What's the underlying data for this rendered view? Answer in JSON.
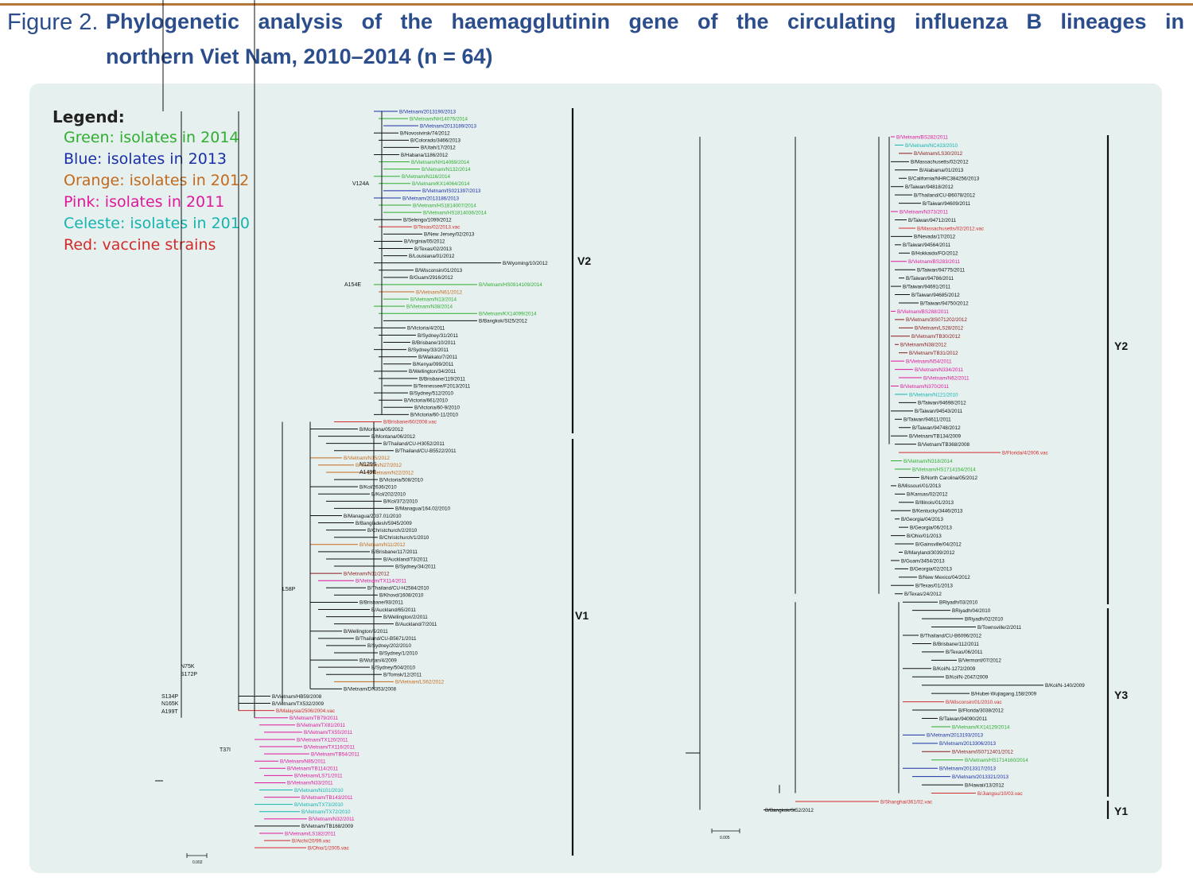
{
  "figure": {
    "number": "Figure 2.",
    "title_line1": "Phylogenetic analysis of the haemagglutinin gene of the circulating influenza B lineages in",
    "title_line2": "northern Viet Nam, 2010–2014 (n = 64)"
  },
  "legend": {
    "title": "Legend:",
    "items": [
      {
        "label": "Green: isolates in 2014",
        "color": "#2fad2f"
      },
      {
        "label": "Blue: isolates in 2013",
        "color": "#1b2fa8"
      },
      {
        "label": "Orange: isolates in 2012",
        "color": "#c3691c"
      },
      {
        "label": "Pink:  isolates in 2011",
        "color": "#e0189c"
      },
      {
        "label": "Celeste: isolates in 2010",
        "color": "#14b4b0"
      },
      {
        "label": "Red: vaccine strains",
        "color": "#d42a2a"
      }
    ]
  },
  "colors": {
    "black": "#111111",
    "green": "#2fad2f",
    "blue": "#1b2fa8",
    "orange": "#c3691c",
    "pink": "#e0189c",
    "celeste": "#14b4b0",
    "red": "#d42a2a",
    "darkred": "#8a1a1a",
    "panel": "#e5f0ef",
    "caption": "#2b4d8c"
  },
  "clades": [
    {
      "label": "V2"
    },
    {
      "label": "V1"
    },
    {
      "label": "Y2"
    },
    {
      "label": "Y3"
    },
    {
      "label": "Y1"
    }
  ],
  "scale_bars": [
    "0.002",
    "0.005"
  ],
  "mutations": [
    "V124A",
    "A154E",
    "N129S",
    "A149E",
    "L58P",
    "N75K",
    "S172P",
    "S134P",
    "N165K",
    "A199T",
    "T37I"
  ],
  "left_tree": [
    {
      "t": "B/Vietnam/2013190/2013",
      "c": "blue"
    },
    {
      "t": "B/Vietnam/NH14076/2014",
      "c": "green"
    },
    {
      "t": "B/Vietnam/2013189/2013",
      "c": "blue"
    },
    {
      "t": "B/Novosivirsk/74/2012",
      "c": "black"
    },
    {
      "t": "B/Colorado/3466/2013",
      "c": "black"
    },
    {
      "t": "B/Utah/17/2012",
      "c": "black"
    },
    {
      "t": "B/Habana/1186/2012",
      "c": "black"
    },
    {
      "t": "B/Vietnam/NH14069/2014",
      "c": "green"
    },
    {
      "t": "B/Vietnam/N132/2014",
      "c": "green"
    },
    {
      "t": "B/Vietnam/N116/2014",
      "c": "green"
    },
    {
      "t": "B/Vietnam/KX14064/2014",
      "c": "green"
    },
    {
      "t": "B/Vietnam/IS021397/2013",
      "c": "blue"
    },
    {
      "t": "B/Vietnam/2013186/2013",
      "c": "blue"
    },
    {
      "t": "B/Vietnam/HS1814007/2014",
      "c": "green"
    },
    {
      "t": "B/Vietnam/HS1814036/2014",
      "c": "green"
    },
    {
      "t": "B/Selengo/1099/2012",
      "c": "black"
    },
    {
      "t": "B/Texas/02/2013.vac",
      "c": "red"
    },
    {
      "t": "B/New Jersey/02/2013",
      "c": "black"
    },
    {
      "t": "B/Virginia/05/2012",
      "c": "black"
    },
    {
      "t": "B/Texas/02/2013",
      "c": "black"
    },
    {
      "t": "B/Louisiana/01/2012",
      "c": "black"
    },
    {
      "t": "B/Wyoming/10/2012",
      "c": "black"
    },
    {
      "t": "B/Wisconsin/01/2013",
      "c": "black"
    },
    {
      "t": "B/Guam/2916/2012",
      "c": "black"
    },
    {
      "t": "B/Vietnam/HS0914109/2014",
      "c": "green"
    },
    {
      "t": "B/Vietnam/N61/2012",
      "c": "orange"
    },
    {
      "t": "B/Vietnam/N13/2014",
      "c": "green"
    },
    {
      "t": "B/Vietnam/N38/2014",
      "c": "green"
    },
    {
      "t": "B/Vietnam/KX14099/2014",
      "c": "green"
    },
    {
      "t": "B/Bangkok/SI25/2012",
      "c": "black"
    },
    {
      "t": "B/Victoria/4/2011",
      "c": "black"
    },
    {
      "t": "B/Sydney/31/2011",
      "c": "black"
    },
    {
      "t": "B/Brisbane/10/2011",
      "c": "black"
    },
    {
      "t": "B/Sydney/33/2011",
      "c": "black"
    },
    {
      "t": "B/Waikato/7/2011",
      "c": "black"
    },
    {
      "t": "B/Kenya/099/2011",
      "c": "black"
    },
    {
      "t": "B/Wellington/34/2011",
      "c": "black"
    },
    {
      "t": "B/Brisbane/119/2011",
      "c": "black"
    },
    {
      "t": "B/Tennessee/F2013/2011",
      "c": "black"
    },
    {
      "t": "B/Sydney/512/2010",
      "c": "black"
    },
    {
      "t": "B/Victoria/661/2010",
      "c": "black"
    },
    {
      "t": "B/Victoria/60-9/2010",
      "c": "black"
    },
    {
      "t": "B/Victoria/60-11/2010",
      "c": "black"
    },
    {
      "t": "B/Brisbane/60/2008.vac",
      "c": "red"
    },
    {
      "t": "B/Montana/05/2012",
      "c": "black"
    },
    {
      "t": "B/Montana/06/2012",
      "c": "black"
    },
    {
      "t": "B/Thailand/CU-H3052/2011",
      "c": "black"
    },
    {
      "t": "B/Thailand/CU-B5522/2011",
      "c": "black"
    },
    {
      "t": "B/Vietnam/N15/2012",
      "c": "orange"
    },
    {
      "t": "B/Vietnam/N27/2012",
      "c": "orange"
    },
    {
      "t": "B/Vietnam/N22/2012",
      "c": "orange"
    },
    {
      "t": "B/Victoria/508/2010",
      "c": "black"
    },
    {
      "t": "B/Kol/2636/2010",
      "c": "black"
    },
    {
      "t": "B/Kol/202/2010",
      "c": "black"
    },
    {
      "t": "B/Kol/372/2010",
      "c": "black"
    },
    {
      "t": "B/Managua/164.02/2010",
      "c": "black"
    },
    {
      "t": "B/Managua/2037.01/2010",
      "c": "black"
    },
    {
      "t": "B/Bangladesh/5945/2009",
      "c": "black"
    },
    {
      "t": "B/Christchurch/2/2010",
      "c": "black"
    },
    {
      "t": "B/Christchurch/1/2010",
      "c": "black"
    },
    {
      "t": "B/Vietnam/N11/2012",
      "c": "orange"
    },
    {
      "t": "B/Brisbane/117/2011",
      "c": "black"
    },
    {
      "t": "B/Auckland/73/2011",
      "c": "black"
    },
    {
      "t": "B/Sydney/34/2011",
      "c": "black"
    },
    {
      "t": "B/Vietnam/N11/2012",
      "c": "darkred"
    },
    {
      "t": "B/Vietnam/TX114/2011",
      "c": "pink"
    },
    {
      "t": "B/Thailand/CU-H2584/2010",
      "c": "black"
    },
    {
      "t": "B/Khovd/1608/2010",
      "c": "black"
    },
    {
      "t": "B/Brisbane/93/2011",
      "c": "black"
    },
    {
      "t": "B/Auckland/65/2011",
      "c": "black"
    },
    {
      "t": "B/Wellington/2/2011",
      "c": "black"
    },
    {
      "t": "B/Auckland/7/2011",
      "c": "black"
    },
    {
      "t": "B/Wellington/5/2011",
      "c": "black"
    },
    {
      "t": "B/Thailand/CU-B5671/2011",
      "c": "black"
    },
    {
      "t": "B/Sydney/202/2010",
      "c": "black"
    },
    {
      "t": "B/Sydney/1/2010",
      "c": "black"
    },
    {
      "t": "B/Wuhan/4/2009",
      "c": "black"
    },
    {
      "t": "B/Sydney/504/2010",
      "c": "black"
    },
    {
      "t": "B/Tomsk/12/2011",
      "c": "black"
    },
    {
      "t": "B/Vietnam/LS62/2012",
      "c": "orange"
    },
    {
      "t": "B/Vietnam/DN353/2008",
      "c": "black"
    },
    {
      "t": "B/Vietnam/HB59/2008",
      "c": "black"
    },
    {
      "t": "B/Vietnam/TX532/2009",
      "c": "black"
    },
    {
      "t": "B/Malaysia/2506/2004.vac",
      "c": "red"
    },
    {
      "t": "B/Vietnam/TB79/2011",
      "c": "pink"
    },
    {
      "t": "B/Vietnam/TX81/2011",
      "c": "pink"
    },
    {
      "t": "B/Vietnam/TX55/2011",
      "c": "pink"
    },
    {
      "t": "B/Vietnam/TX120/2011",
      "c": "pink"
    },
    {
      "t": "B/Vietnam/TX116/2011",
      "c": "pink"
    },
    {
      "t": "B/Vietnam/TB54/2011",
      "c": "pink"
    },
    {
      "t": "B/Vietnam/N85/2011",
      "c": "pink"
    },
    {
      "t": "B/Vietnam/TB114/2011",
      "c": "pink"
    },
    {
      "t": "B/Vietnam/LS71/2011",
      "c": "pink"
    },
    {
      "t": "B/Vietnam/N33/2011",
      "c": "pink"
    },
    {
      "t": "B/Vietnam/N101/2010",
      "c": "celeste"
    },
    {
      "t": "B/Vietnam/TB143/2011",
      "c": "pink"
    },
    {
      "t": "B/Vietnam/TX73/2010",
      "c": "celeste"
    },
    {
      "t": "B/Vietnam/TX72/2010",
      "c": "celeste"
    },
    {
      "t": "B/Vietnam/N32/2011",
      "c": "pink"
    },
    {
      "t": "B/Vietnam/TB168/2009",
      "c": "black"
    },
    {
      "t": "B/Vietnam/LS182/2011",
      "c": "pink"
    },
    {
      "t": "B/Aichi/20/99.vac",
      "c": "red"
    },
    {
      "t": "B/Ohio/1/2005.vac",
      "c": "red"
    }
  ],
  "right_tree": [
    {
      "t": "B/Vietnam/BS282/2011",
      "c": "pink"
    },
    {
      "t": "B/Vietnam/NC433/2010",
      "c": "celeste"
    },
    {
      "t": "B/Vietnam/LS30/2012",
      "c": "darkred"
    },
    {
      "t": "B/Massachusetts/02/2012",
      "c": "black"
    },
    {
      "t": "B/Alabama/01/2013",
      "c": "black"
    },
    {
      "t": "B/California/NHRC384256/2013",
      "c": "black"
    },
    {
      "t": "B/Taiwan/94818/2012",
      "c": "black"
    },
    {
      "t": "B/Thailand/CU-B6078/2012",
      "c": "black"
    },
    {
      "t": "B/Taiwan/94609/2011",
      "c": "black"
    },
    {
      "t": "B/Vietnam/N373/2011",
      "c": "pink"
    },
    {
      "t": "B/Taiwan/94712/2011",
      "c": "black"
    },
    {
      "t": "B/Massachusetts/02/2012.vac",
      "c": "red"
    },
    {
      "t": "B/Nevada/17/2012",
      "c": "black"
    },
    {
      "t": "B/Taiwan/94564/2011",
      "c": "black"
    },
    {
      "t": "B/Hokkaido/FO/2012",
      "c": "black"
    },
    {
      "t": "B/Vietnam/BS283/2011",
      "c": "pink"
    },
    {
      "t": "B/Taiwan/94775/2011",
      "c": "black"
    },
    {
      "t": "B/Taiwan/94786/2011",
      "c": "black"
    },
    {
      "t": "B/Taiwan/94691/2011",
      "c": "black"
    },
    {
      "t": "B/Taiwan/94685/2012",
      "c": "black"
    },
    {
      "t": "B/Taiwan/94750/2012",
      "c": "black"
    },
    {
      "t": "B/Vietnam/BS288/2011",
      "c": "pink"
    },
    {
      "t": "B/Vietnam/3IS071202/2012",
      "c": "darkred"
    },
    {
      "t": "B/Vietnam/LS28/2012",
      "c": "darkred"
    },
    {
      "t": "B/Vietnam/TB30/2012",
      "c": "darkred"
    },
    {
      "t": "B/Vietnam/N38/2012",
      "c": "darkred"
    },
    {
      "t": "B/Vietnam/TB31/2012",
      "c": "darkred"
    },
    {
      "t": "B/Vietnam/N54/2011",
      "c": "pink"
    },
    {
      "t": "B/Vietnam/N334/2011",
      "c": "pink"
    },
    {
      "t": "B/Vietnam/N62/2011",
      "c": "pink"
    },
    {
      "t": "B/Vietnam/N370/2011",
      "c": "pink"
    },
    {
      "t": "B/Vietnam/N121/2010",
      "c": "celeste"
    },
    {
      "t": "B/Taiwan/94698/2012",
      "c": "black"
    },
    {
      "t": "B/Taiwan/94543/2011",
      "c": "black"
    },
    {
      "t": "B/Taiwan/94611/2011",
      "c": "black"
    },
    {
      "t": "B/Taiwan/94748/2012",
      "c": "black"
    },
    {
      "t": "B/Vietnam/TB134/2009",
      "c": "black"
    },
    {
      "t": "B/Vietnam/TB368/2008",
      "c": "black"
    },
    {
      "t": "B/Florida/4/2006.vac",
      "c": "red"
    },
    {
      "t": "B/Vietnam/N318/2014",
      "c": "green"
    },
    {
      "t": "B/Vietnam/HS1714154/2014",
      "c": "green"
    },
    {
      "t": "B/North Carolina/05/2012",
      "c": "black"
    },
    {
      "t": "B/Missouri/01/2013",
      "c": "black"
    },
    {
      "t": "B/Kansas/02/2012",
      "c": "black"
    },
    {
      "t": "B/Illinois/01/2013",
      "c": "black"
    },
    {
      "t": "B/Kentucky/3446/2013",
      "c": "black"
    },
    {
      "t": "B/Georgia/04/2013",
      "c": "black"
    },
    {
      "t": "B/Georgia/06/2013",
      "c": "black"
    },
    {
      "t": "B/Ohio/01/2013",
      "c": "black"
    },
    {
      "t": "B/Gainsville/04/2012",
      "c": "black"
    },
    {
      "t": "B/Maryland/3039/2012",
      "c": "black"
    },
    {
      "t": "B/Guam/3454/2013",
      "c": "black"
    },
    {
      "t": "B/Georgia/02/2013",
      "c": "black"
    },
    {
      "t": "B/New Mexico/04/2012",
      "c": "black"
    },
    {
      "t": "B/Texas/01/2013",
      "c": "black"
    },
    {
      "t": "B/Texas/24/2012",
      "c": "black"
    },
    {
      "t": "BRiyadh/03/2010",
      "c": "black"
    },
    {
      "t": "BRiyadh/04/2010",
      "c": "black"
    },
    {
      "t": "BRiyadh/02/2010",
      "c": "black"
    },
    {
      "t": "B/Townsville/2/2011",
      "c": "black"
    },
    {
      "t": "B/Thailand/CU-B6096/2012",
      "c": "black"
    },
    {
      "t": "B/Brisbane/112/2011",
      "c": "black"
    },
    {
      "t": "B/Texas/06/2011",
      "c": "black"
    },
    {
      "t": "B/Vermont/07/2012",
      "c": "black"
    },
    {
      "t": "B/Kol/N-1272/2009",
      "c": "black"
    },
    {
      "t": "B/Kol/N-2047/2009",
      "c": "black"
    },
    {
      "t": "B/Kol/N-140/2009",
      "c": "black"
    },
    {
      "t": "B/Hubei-Wujiagang.158/2009",
      "c": "black"
    },
    {
      "t": "B/Wisconsin/01/2010.vac",
      "c": "red"
    },
    {
      "t": "B/Florida/3038/2012",
      "c": "black"
    },
    {
      "t": "B/Taiwan/94090/2011",
      "c": "black"
    },
    {
      "t": "B/Vietnam/KX14129/2014",
      "c": "green"
    },
    {
      "t": "B/Vietnam/2013193/2013",
      "c": "blue"
    },
    {
      "t": "B/Vietnam/2013306/2013",
      "c": "blue"
    },
    {
      "t": "B/Vietnam/IS0712401/2012",
      "c": "darkred"
    },
    {
      "t": "B/Vietnam/HS1714160/2014",
      "c": "green"
    },
    {
      "t": "B/Vietnam/2013317/2013",
      "c": "blue"
    },
    {
      "t": "B/Vietnam/2013321/2013",
      "c": "blue"
    },
    {
      "t": "B/Hawaii/13/2012",
      "c": "black"
    },
    {
      "t": "B/Jiangsu/10/03.vac",
      "c": "red"
    },
    {
      "t": "B/Shanghai/361/02.vac",
      "c": "red"
    },
    {
      "t": "B/Bangkok/SI52/2012",
      "c": "black"
    }
  ]
}
